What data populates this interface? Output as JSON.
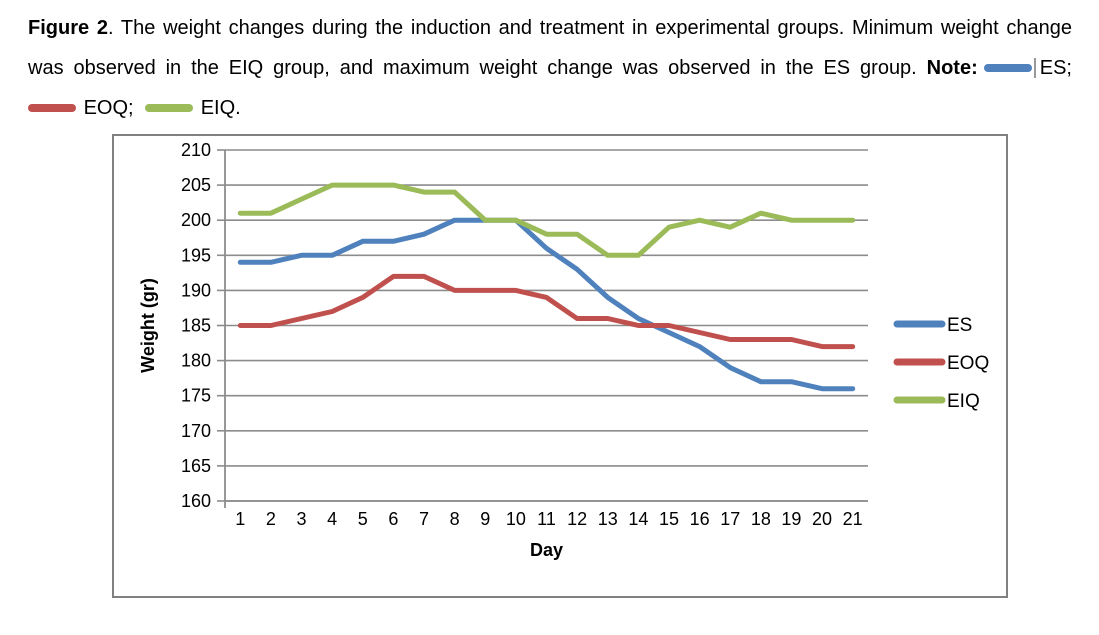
{
  "caption": {
    "figure_label": "Figure 2",
    "line1": ". The weight changes during the induction and treatment in experimental groups. Minimum weight change",
    "line2": "was observed in the EIQ group, and maximum weight change was observed in the ES group. ",
    "note_label": "Note:",
    "note_items": [
      {
        "series": "ES",
        "label": "ES;",
        "color": "#4F81BD"
      },
      {
        "series": "EOQ",
        "label": "EOQ;",
        "color": "#C0504D"
      },
      {
        "series": "EIQ",
        "label": "EIQ.",
        "color": "#9BBB59"
      }
    ]
  },
  "chart_data": {
    "type": "line",
    "title": "",
    "xlabel": "Day",
    "ylabel": "Weight (gr)",
    "x": [
      1,
      2,
      3,
      4,
      5,
      6,
      7,
      8,
      9,
      10,
      11,
      12,
      13,
      14,
      15,
      16,
      17,
      18,
      19,
      20,
      21
    ],
    "series": [
      {
        "name": "ES",
        "color": "#4F81BD",
        "values": [
          194,
          194,
          195,
          195,
          197,
          197,
          198,
          200,
          200,
          200,
          196,
          193,
          189,
          186,
          184,
          182,
          179,
          177,
          177,
          176,
          176
        ]
      },
      {
        "name": "EOQ",
        "color": "#C0504D",
        "values": [
          185,
          185,
          186,
          187,
          189,
          192,
          192,
          190,
          190,
          190,
          189,
          186,
          186,
          185,
          185,
          184,
          183,
          183,
          183,
          182,
          182
        ]
      },
      {
        "name": "EIQ",
        "color": "#9BBB59",
        "values": [
          201,
          201,
          203,
          205,
          205,
          205,
          204,
          204,
          200,
          200,
          198,
          198,
          195,
          195,
          199,
          200,
          199,
          201,
          200,
          200,
          200
        ]
      }
    ],
    "ylim": [
      160,
      210
    ],
    "ytick_step": 5,
    "grid": true,
    "legend_position": "right",
    "gridline_color": "#8c8c8c",
    "axis_color": "#8c8c8c",
    "border_color": "#808080",
    "tick_label_size": 18,
    "axis_title_size": 18,
    "legend_label_size": 19
  }
}
